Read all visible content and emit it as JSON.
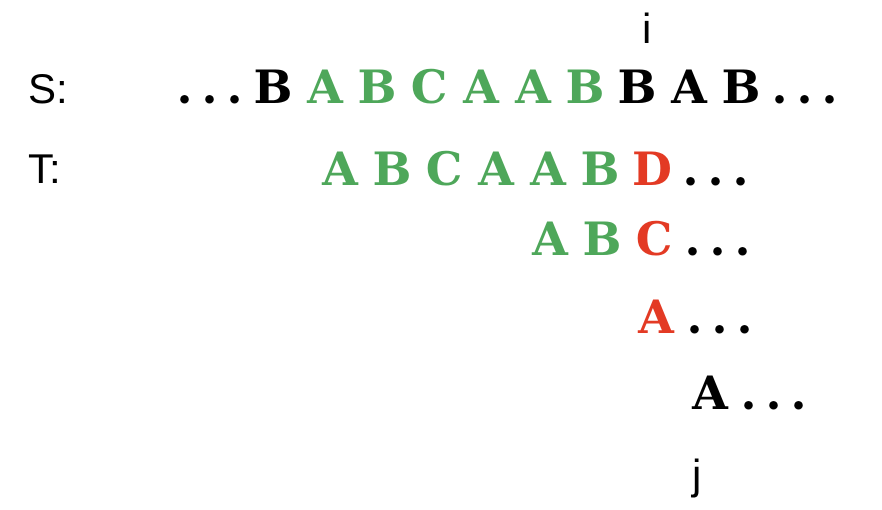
{
  "colors": {
    "black": "#000000",
    "green": "#4ea75a",
    "red": "#e33a24"
  },
  "markers": {
    "i": "i",
    "j": "j"
  },
  "labels": {
    "s": "S:",
    "t": "T:"
  },
  "rows": {
    "s": [
      {
        "t": ".",
        "c": "black"
      },
      {
        "t": ".",
        "c": "black"
      },
      {
        "t": ".",
        "c": "black"
      },
      {
        "t": "B",
        "c": "black"
      },
      {
        "t": "A",
        "c": "green"
      },
      {
        "t": "B",
        "c": "green"
      },
      {
        "t": "C",
        "c": "green"
      },
      {
        "t": "A",
        "c": "green"
      },
      {
        "t": "A",
        "c": "green"
      },
      {
        "t": "B",
        "c": "green"
      },
      {
        "t": "B",
        "c": "black"
      },
      {
        "t": "A",
        "c": "black"
      },
      {
        "t": "B",
        "c": "black"
      },
      {
        "t": ".",
        "c": "black"
      },
      {
        "t": ".",
        "c": "black"
      },
      {
        "t": ".",
        "c": "black"
      }
    ],
    "t1": [
      {
        "t": "A",
        "c": "green"
      },
      {
        "t": "B",
        "c": "green"
      },
      {
        "t": "C",
        "c": "green"
      },
      {
        "t": "A",
        "c": "green"
      },
      {
        "t": "A",
        "c": "green"
      },
      {
        "t": "B",
        "c": "green"
      },
      {
        "t": "D",
        "c": "red"
      },
      {
        "t": ".",
        "c": "black"
      },
      {
        "t": ".",
        "c": "black"
      },
      {
        "t": ".",
        "c": "black"
      }
    ],
    "t2": [
      {
        "t": "A",
        "c": "green"
      },
      {
        "t": "B",
        "c": "green"
      },
      {
        "t": "C",
        "c": "red"
      },
      {
        "t": ".",
        "c": "black"
      },
      {
        "t": ".",
        "c": "black"
      },
      {
        "t": ".",
        "c": "black"
      }
    ],
    "t3": [
      {
        "t": "A",
        "c": "red"
      },
      {
        "t": ".",
        "c": "black"
      },
      {
        "t": ".",
        "c": "black"
      },
      {
        "t": ".",
        "c": "black"
      }
    ],
    "t4": [
      {
        "t": "A",
        "c": "black"
      },
      {
        "t": ".",
        "c": "black"
      },
      {
        "t": ".",
        "c": "black"
      },
      {
        "t": ".",
        "c": "black"
      }
    ]
  }
}
